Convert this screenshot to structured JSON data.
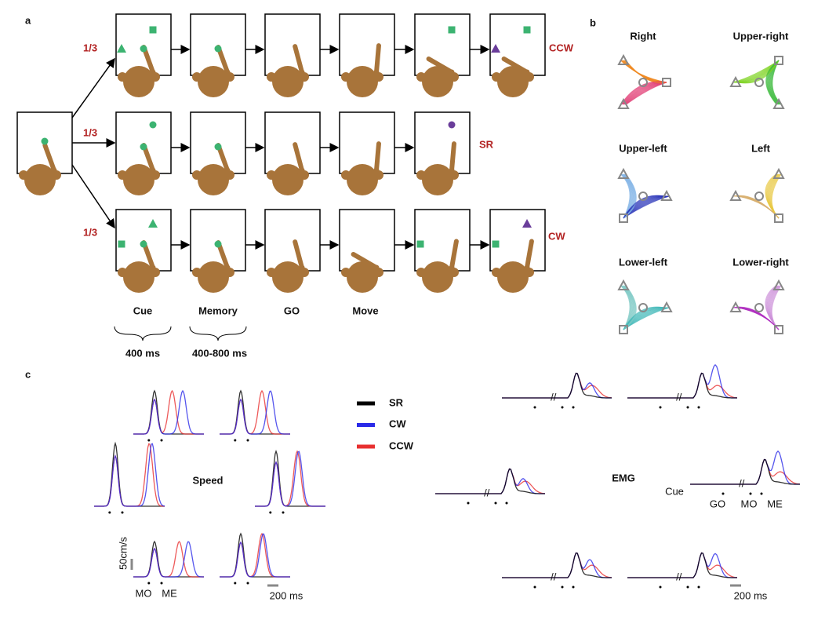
{
  "panel_a": {
    "label": "a",
    "probabilities": [
      "1/3",
      "1/3",
      "1/3"
    ],
    "conditions": [
      "CCW",
      "SR",
      "CW"
    ],
    "epochs": [
      "Cue",
      "Memory",
      "GO",
      "Move"
    ],
    "durations": [
      "400 ms",
      "400-800 ms"
    ]
  },
  "panel_b": {
    "label": "b",
    "directions": [
      "Right",
      "Upper-right",
      "Upper-left",
      "Left",
      "Lower-left",
      "Lower-right"
    ]
  },
  "panel_c": {
    "label": "c",
    "legend": [
      {
        "name": "SR",
        "color": "#000000"
      },
      {
        "name": "CW",
        "color": "#2a2ae8"
      },
      {
        "name": "CCW",
        "color": "#e83030"
      }
    ],
    "speed_title": "Speed",
    "emg_title": "EMG",
    "speed_scale": "50cm/s",
    "speed_events": [
      "MO",
      "ME"
    ],
    "speed_time_scale": "200 ms",
    "emg_events": [
      "Cue",
      "GO",
      "MO",
      "ME"
    ],
    "emg_time_scale": "200 ms"
  }
}
